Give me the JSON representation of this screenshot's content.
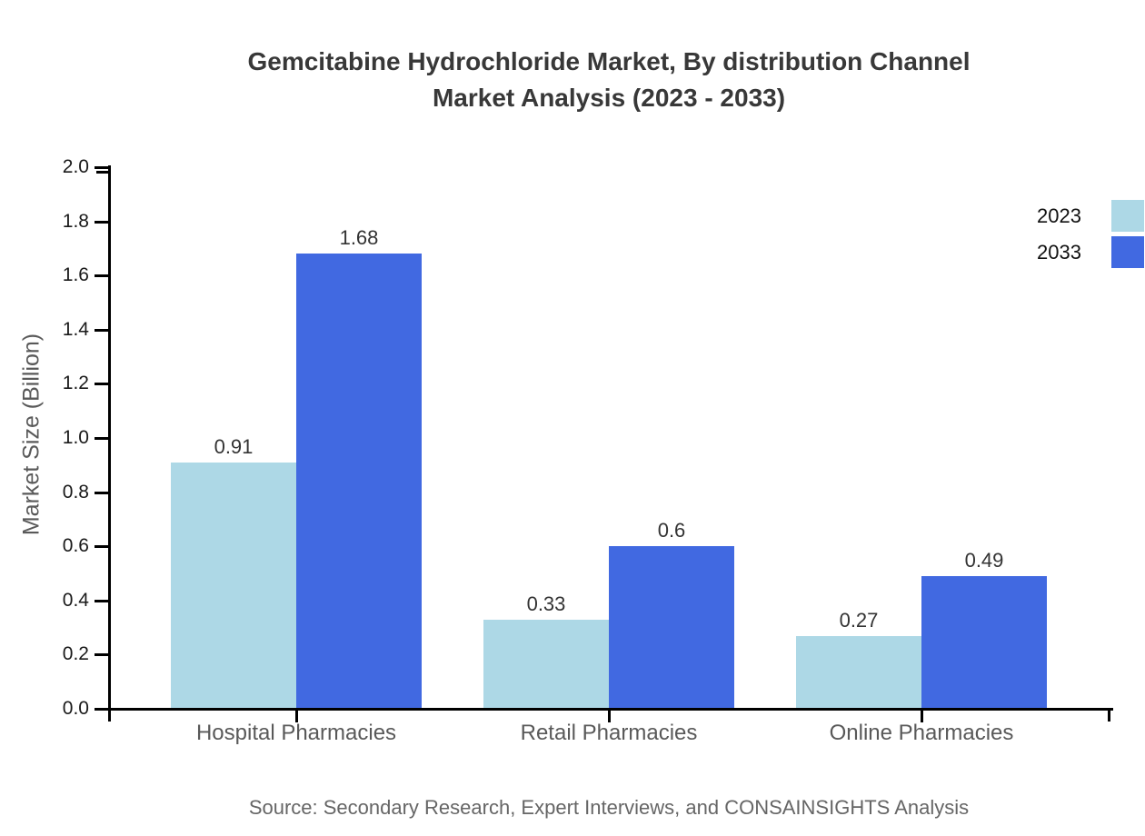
{
  "title": {
    "line1": "Gemcitabine Hydrochloride Market, By distribution Channel",
    "line2": "Market Analysis (2023 - 2033)"
  },
  "chart_data": {
    "type": "bar",
    "title": "Gemcitabine Hydrochloride Market, By distribution Channel Market Analysis (2023 - 2033)",
    "categories": [
      "Hospital Pharmacies",
      "Retail Pharmacies",
      "Online Pharmacies"
    ],
    "series": [
      {
        "name": "2023",
        "color": "#ADD8E6",
        "values": [
          0.91,
          0.33,
          0.27
        ]
      },
      {
        "name": "2033",
        "color": "#4169E1",
        "values": [
          1.68,
          0.6,
          0.49
        ]
      }
    ],
    "xlabel": "",
    "ylabel": "Market Size (Billion)",
    "ylim": [
      0,
      2
    ],
    "yticks": [
      "0.0",
      "0.2",
      "0.4",
      "0.6",
      "0.8",
      "1.0",
      "1.2",
      "1.4",
      "1.6",
      "1.8",
      "2.0"
    ],
    "grid": false,
    "bar_value_labels": true,
    "legend_position": "right-outside-top"
  },
  "source": {
    "text": "Source: Secondary Research, Expert Interviews, and CONSAINSIGHTS Analysis"
  },
  "colors": {
    "background": "#ffffff",
    "axis": "#000000",
    "tick_label": "#1a1a1a",
    "category_label": "#595959",
    "value_label": "#333333",
    "title": "#383838",
    "source": "#666666",
    "series_2023": "#ADD8E6",
    "series_2033": "#4169E1"
  }
}
